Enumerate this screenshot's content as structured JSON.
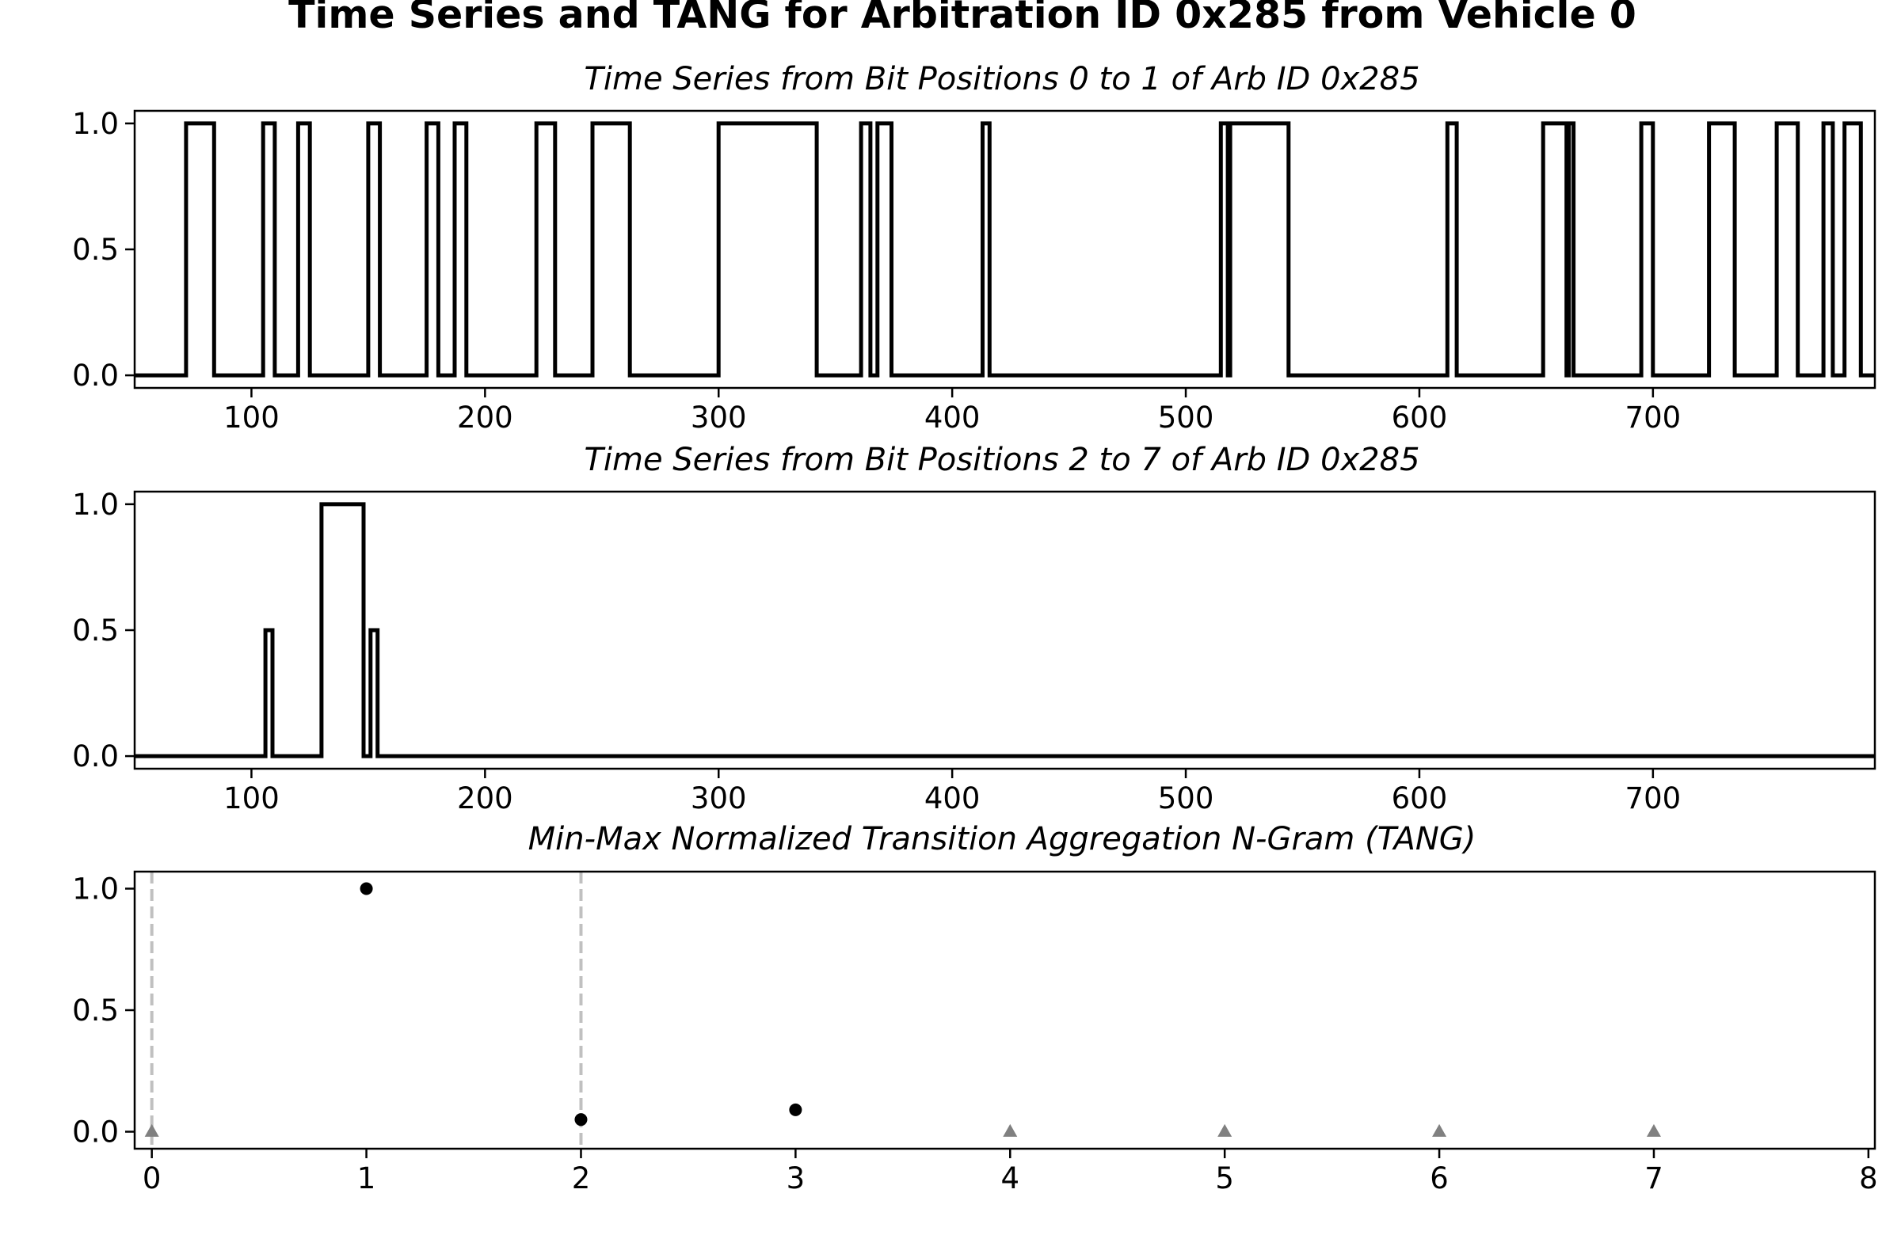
{
  "figure": {
    "suptitle": "Time Series and TANG for Arbitration ID 0x285 from Vehicle 0"
  },
  "chart_data": [
    {
      "type": "line",
      "step": true,
      "title": "Time Series from Bit Positions 0 to 1 of Arb ID 0x285",
      "xlabel": "",
      "ylabel": "",
      "xlim": [
        50,
        795
      ],
      "ylim": [
        -0.05,
        1.05
      ],
      "x_ticks": [
        100,
        200,
        300,
        400,
        500,
        600,
        700
      ],
      "y_ticks": [
        0.0,
        0.5,
        1.0
      ],
      "x_tick_labels": [
        "100",
        "200",
        "300",
        "400",
        "500",
        "600",
        "700"
      ],
      "y_tick_labels": [
        "0.0",
        "0.5",
        "1.0"
      ],
      "grid": false,
      "color": "#000000",
      "transitions_x": [
        50,
        72,
        84,
        105,
        110,
        120,
        125,
        150,
        155,
        175,
        180,
        187,
        192,
        222,
        230,
        246,
        262,
        300,
        342,
        361,
        365,
        368,
        374,
        413,
        416,
        515,
        518,
        519,
        521,
        544,
        612,
        616,
        653,
        663,
        664,
        666,
        695,
        700,
        724,
        735,
        753,
        762,
        773,
        777,
        782,
        789,
        795
      ],
      "levels": [
        0,
        1,
        0,
        1,
        0,
        1,
        0,
        1,
        0,
        1,
        0,
        1,
        0,
        1,
        0,
        1,
        0,
        1,
        0,
        1,
        0,
        1,
        0,
        1,
        0,
        1,
        0,
        1,
        1,
        0,
        1,
        0,
        1,
        0,
        1,
        0,
        1,
        0,
        1,
        0,
        1,
        0,
        1,
        0,
        1,
        0
      ]
    },
    {
      "type": "line",
      "step": true,
      "title": "Time Series from Bit Positions 2 to 7 of Arb ID 0x285",
      "xlabel": "",
      "ylabel": "",
      "xlim": [
        50,
        795
      ],
      "ylim": [
        -0.05,
        1.05
      ],
      "x_ticks": [
        100,
        200,
        300,
        400,
        500,
        600,
        700
      ],
      "y_ticks": [
        0.0,
        0.5,
        1.0
      ],
      "x_tick_labels": [
        "100",
        "200",
        "300",
        "400",
        "500",
        "600",
        "700"
      ],
      "y_tick_labels": [
        "0.0",
        "0.5",
        "1.0"
      ],
      "grid": false,
      "color": "#000000",
      "transitions_x": [
        50,
        106,
        109,
        130,
        148,
        151,
        154,
        795
      ],
      "levels": [
        0,
        0.5,
        0,
        1,
        0,
        0.5,
        0
      ]
    },
    {
      "type": "scatter",
      "title": "Min-Max Normalized Transition Aggregation N-Gram (TANG)",
      "xlabel": "",
      "ylabel": "",
      "xlim": [
        -0.08,
        8.03
      ],
      "ylim": [
        -0.07,
        1.07
      ],
      "x_ticks": [
        0,
        1,
        2,
        3,
        4,
        5,
        6,
        7,
        8
      ],
      "y_ticks": [
        0.0,
        0.5,
        1.0
      ],
      "x_tick_labels": [
        "0",
        "1",
        "2",
        "3",
        "4",
        "5",
        "6",
        "7",
        "8"
      ],
      "y_tick_labels": [
        "0.0",
        "0.5",
        "1.0"
      ],
      "grid": false,
      "series": [
        {
          "marker": "circle",
          "color": "#000000",
          "x": [
            1,
            2,
            3
          ],
          "y": [
            1.0,
            0.05,
            0.09
          ]
        },
        {
          "marker": "triangle",
          "color": "#808080",
          "x": [
            0,
            4,
            5,
            6,
            7
          ],
          "y": [
            0.0,
            0.0,
            0.0,
            0.0,
            0.0
          ]
        }
      ],
      "vlines": {
        "x": [
          0,
          2
        ],
        "color": "#c0c0c0",
        "style": "dashed"
      }
    }
  ]
}
